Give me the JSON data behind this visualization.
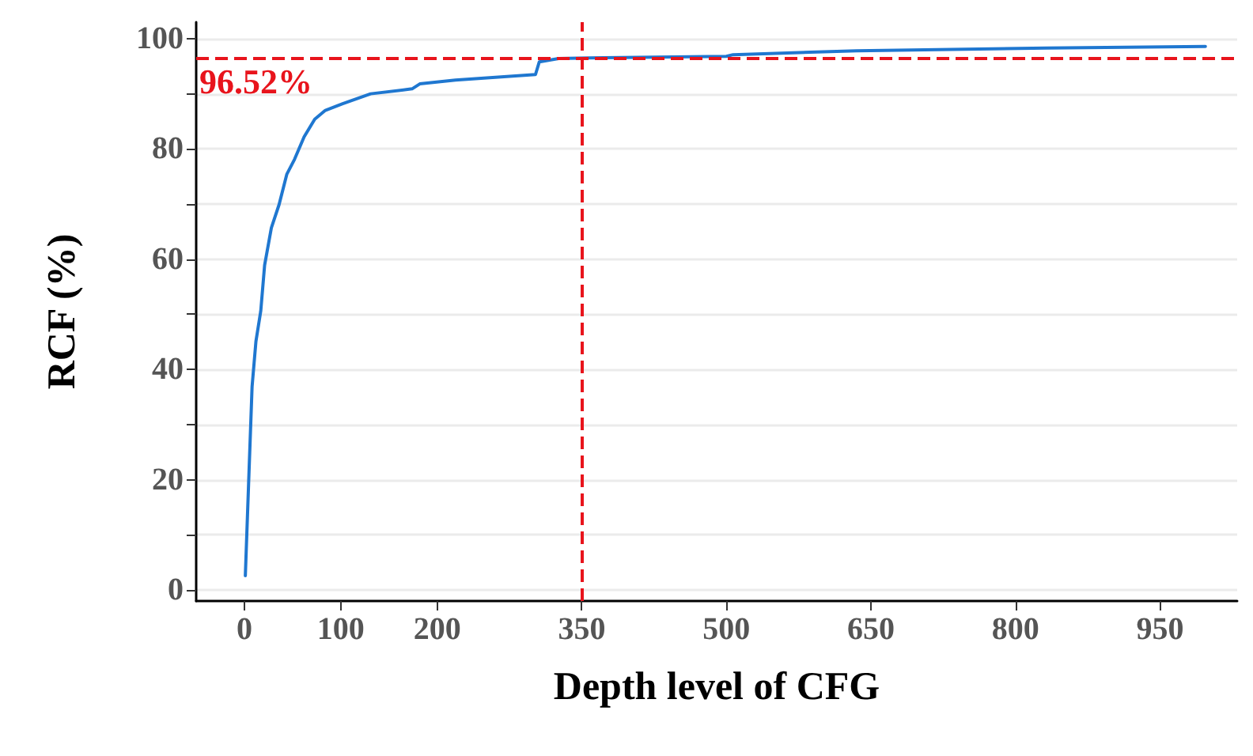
{
  "chart_data": {
    "type": "line",
    "xlabel": "Depth level of CFG",
    "ylabel": "RCF (%)",
    "xlim": [
      -50,
      1030
    ],
    "ylim": [
      -2,
      103
    ],
    "xticks": [
      0,
      100,
      200,
      350,
      500,
      650,
      800,
      950
    ],
    "yticks": [
      0,
      {
        "value": 10,
        "label": null
      },
      20,
      {
        "value": 30,
        "label": null
      },
      40,
      {
        "value": 50,
        "label": null
      },
      60,
      {
        "value": 70,
        "label": null
      },
      80,
      {
        "value": 90,
        "label": null
      },
      100
    ],
    "grid": "y",
    "marker": "none",
    "line_style": "solid",
    "series": [
      {
        "color": "#1f77d0",
        "x": [
          1,
          5,
          8,
          12,
          17,
          21,
          28,
          36,
          44,
          52,
          62,
          73,
          84,
          102,
          131,
          174,
          182,
          219,
          302,
          306,
          326,
          358,
          500,
          507,
          635,
          832,
          997
        ],
        "values": [
          2.6,
          22.3,
          36.9,
          45.1,
          50.6,
          58.9,
          65.7,
          69.9,
          75.4,
          78.1,
          82.2,
          85.4,
          87.0,
          88.2,
          90.0,
          90.9,
          91.8,
          92.5,
          93.5,
          95.8,
          96.4,
          96.5,
          96.8,
          97.1,
          97.8,
          98.3,
          98.6
        ]
      }
    ],
    "ref_lines": [
      {
        "axis": "y",
        "value": 96.52,
        "label": "96.52%",
        "color": "#e8141c",
        "line_style": "dashed"
      },
      {
        "axis": "x",
        "value": 350,
        "color": "#e8141c",
        "line_style": "dashed"
      }
    ]
  }
}
